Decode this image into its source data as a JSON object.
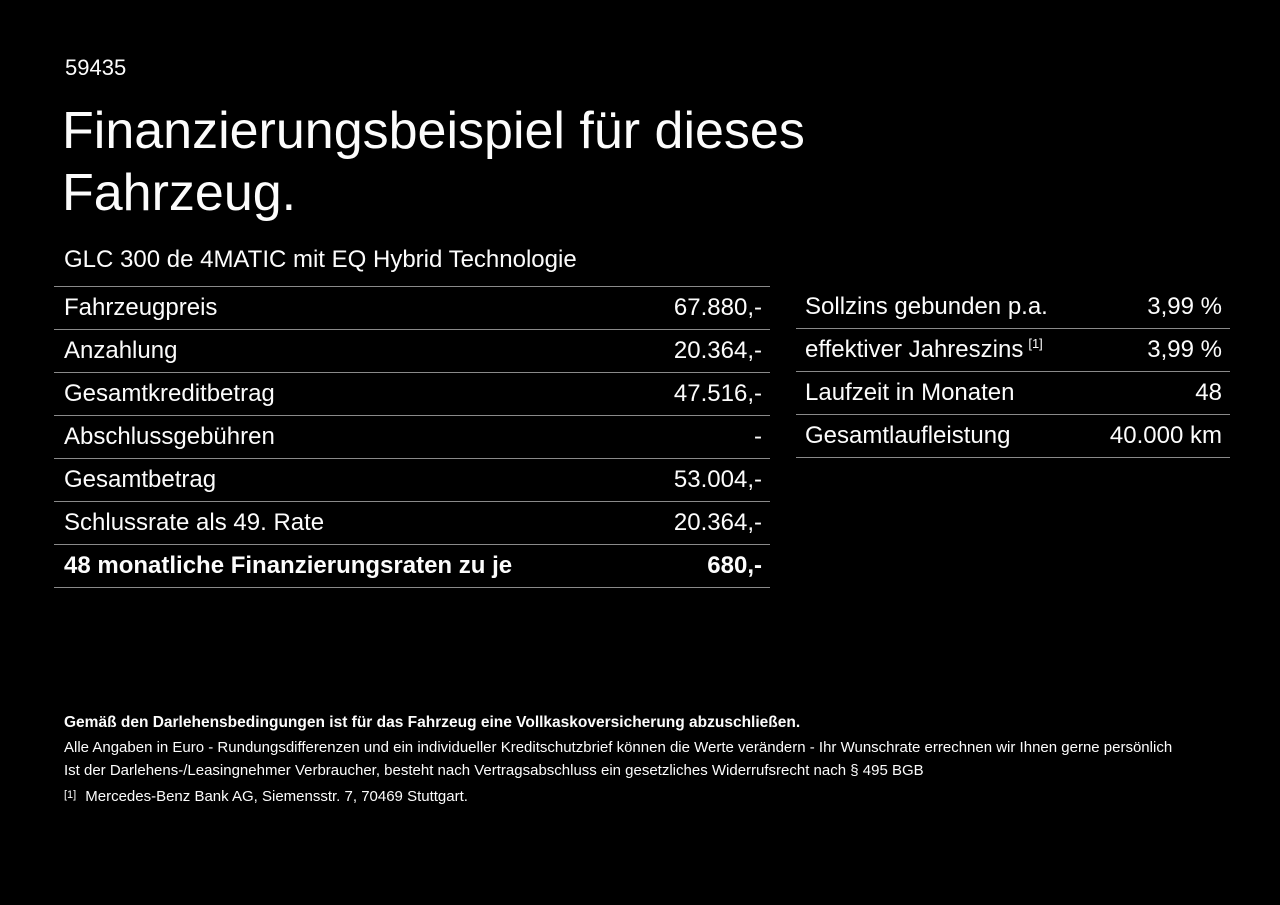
{
  "page": {
    "doc_number": "59435",
    "title": "Finanzierungsbeispiel für dieses Fahrzeug.",
    "subtitle": "GLC 300 de 4MATIC mit EQ Hybrid Technologie"
  },
  "colors": {
    "background": "#000000",
    "text": "#fcfcfc",
    "divider": "#8a8a8a"
  },
  "finance_table": {
    "rows": [
      {
        "label": "Fahrzeugpreis",
        "value": "67.880,-"
      },
      {
        "label": "Anzahlung",
        "value": "20.364,-"
      },
      {
        "label": "Gesamtkreditbetrag",
        "value": "47.516,-"
      },
      {
        "label": "Abschlussgebühren",
        "value": "-"
      },
      {
        "label": "Gesamtbetrag",
        "value": "53.004,-"
      },
      {
        "label": "Schlussrate als 49. Rate",
        "value": "20.364,-"
      },
      {
        "label": "48 monatliche Finanzierungsraten zu je",
        "value": "680,-"
      }
    ]
  },
  "conditions_table": {
    "rows": [
      {
        "label": "Sollzins gebunden p.a.",
        "value": "3,99 %"
      },
      {
        "label": "effektiver Jahreszins",
        "label_sup": "[1]",
        "value": "3,99 %"
      },
      {
        "label": "Laufzeit in Monaten",
        "value": "48"
      },
      {
        "label": "Gesamtlaufleistung",
        "value": "40.000 km"
      }
    ]
  },
  "footnotes": {
    "insurance_note": "Gemäß den Darlehensbedingungen ist für das Fahrzeug eine Vollkaskoversicherung abzuschließen.",
    "disclaimer_line1": "Alle Angaben in Euro - Rundungsdifferenzen und ein individueller Kreditschutzbrief können die Werte verändern - Ihr Wunschrate errechnen wir Ihnen gerne persönlich",
    "disclaimer_line2": "Ist der Darlehens-/Leasingnehmer Verbraucher, besteht nach Vertragsabschluss ein gesetzliches Widerrufsrecht nach § 495 BGB",
    "footnote_1_marker": "[1]",
    "footnote_1_text": "Mercedes-Benz Bank AG, Siemensstr. 7, 70469 Stuttgart."
  }
}
